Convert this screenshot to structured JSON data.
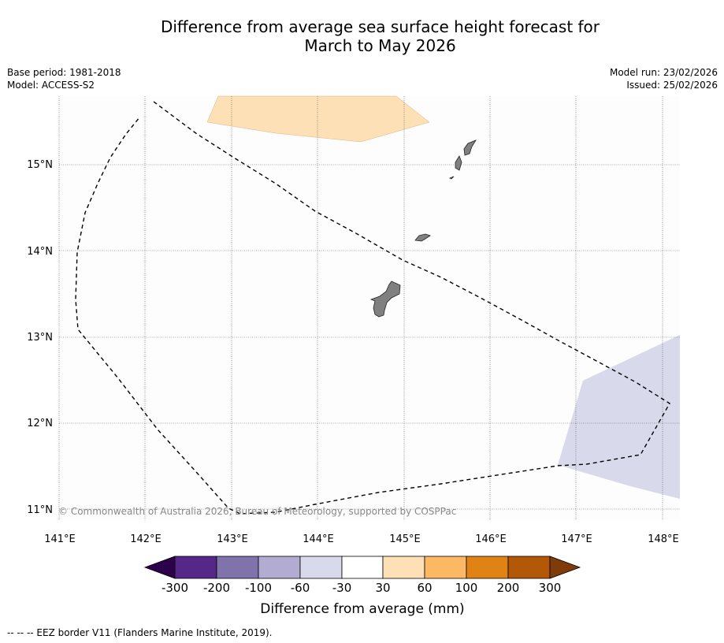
{
  "title_line1": "Difference from average sea surface height forecast for",
  "title_line2": "March to May 2026",
  "base_period": "Base period: 1981-2018",
  "model": "Model: ACCESS-S2",
  "model_run": "Model run: 23/02/2026",
  "issued": "Issued: 25/02/2026",
  "copyright": "© Commonwealth of Australia 2026, Bureau of Meteorology, supported by COSPPac",
  "footer": "--  --  -- EEZ border V11 (Flanders Marine Institute, 2019).",
  "lon_labels": [
    "141°E",
    "142°E",
    "143°E",
    "144°E",
    "145°E",
    "146°E",
    "147°E",
    "148°E"
  ],
  "lat_labels": [
    "15°N",
    "14°N",
    "13°N",
    "12°N",
    "11°N"
  ],
  "colorbar": {
    "title": "Difference from average (mm)",
    "ticks": [
      "-300",
      "-200",
      "-100",
      "-60",
      "-30",
      "30",
      "60",
      "100",
      "200",
      "300"
    ],
    "colors": {
      "below": "#2d004b",
      "b1": "#542788",
      "b2": "#8073ac",
      "b3": "#b2abd2",
      "b4": "#d8daeb",
      "b5": "#ffffff",
      "b6": "#fee0b6",
      "b7": "#fdb863",
      "b8": "#e08214",
      "b9": "#b35806",
      "above": "#7f3b08"
    }
  },
  "chart_data": {
    "type": "map",
    "extent": {
      "lon": [
        140.9,
        148.2
      ],
      "lat": [
        10.8,
        15.8
      ]
    },
    "anomaly_regions": [
      {
        "category": "30 to 60 mm",
        "color": "#fee0b6",
        "location": "north of Guam, near 143-145°E 15.3-15.8°N"
      },
      {
        "category": "-60 to -30 mm",
        "color": "#d8daeb",
        "location": "southeast, near 146.8-148.2°E 11.1-13.0°N"
      }
    ],
    "overlay": "EEZ border (dashed)"
  }
}
